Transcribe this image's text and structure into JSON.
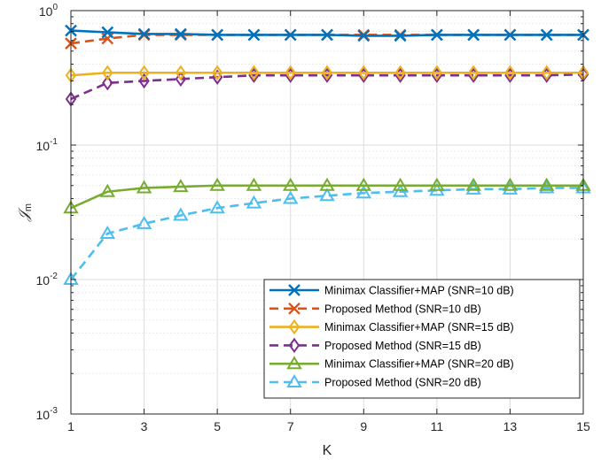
{
  "chart_data": {
    "type": "line",
    "xlabel": "K",
    "ylabel": "𝒥",
    "ylabel_sub": "m",
    "yscale": "log",
    "xlim": [
      1,
      15
    ],
    "ylim": [
      0.001,
      1
    ],
    "xticks": [
      1,
      3,
      5,
      7,
      9,
      11,
      13,
      15
    ],
    "xtick_labels": [
      "1",
      "3",
      "5",
      "7",
      "9",
      "11",
      "13",
      "15"
    ],
    "yticks": [
      {
        "value": 0.001,
        "base": "10",
        "exp": "-3"
      },
      {
        "value": 0.01,
        "base": "10",
        "exp": "-2"
      },
      {
        "value": 0.1,
        "base": "10",
        "exp": "-1"
      },
      {
        "value": 1,
        "base": "10",
        "exp": "0"
      }
    ],
    "grid": true,
    "legend_position": "bottom-right",
    "x": [
      1,
      2,
      3,
      4,
      5,
      6,
      7,
      8,
      9,
      10,
      11,
      12,
      13,
      14,
      15
    ],
    "series": [
      {
        "name": "Minimax Classifier+MAP (SNR=10 dB)",
        "color": "#0072BD",
        "dash": "solid",
        "marker": "x",
        "values": [
          0.71,
          0.69,
          0.67,
          0.67,
          0.66,
          0.66,
          0.66,
          0.66,
          0.65,
          0.65,
          0.66,
          0.66,
          0.66,
          0.66,
          0.66
        ]
      },
      {
        "name": "Proposed Method (SNR=10 dB)",
        "color": "#D95319",
        "dash": "dashed",
        "marker": "x",
        "values": [
          0.57,
          0.62,
          0.66,
          0.66,
          0.66,
          0.66,
          0.66,
          0.66,
          0.66,
          0.66,
          0.66,
          0.66,
          0.66,
          0.66,
          0.66
        ]
      },
      {
        "name": "Minimax Classifier+MAP (SNR=15 dB)",
        "color": "#EDB120",
        "dash": "solid",
        "marker": "diamond",
        "values": [
          0.33,
          0.345,
          0.345,
          0.345,
          0.345,
          0.345,
          0.345,
          0.345,
          0.345,
          0.345,
          0.345,
          0.345,
          0.345,
          0.345,
          0.345
        ]
      },
      {
        "name": "Proposed Method (SNR=15 dB)",
        "color": "#7E2F8E",
        "dash": "dashed",
        "marker": "diamond",
        "values": [
          0.22,
          0.29,
          0.3,
          0.31,
          0.32,
          0.33,
          0.33,
          0.33,
          0.33,
          0.33,
          0.33,
          0.33,
          0.33,
          0.33,
          0.335
        ]
      },
      {
        "name": "Minimax Classifier+MAP (SNR=20 dB)",
        "color": "#77AC30",
        "dash": "solid",
        "marker": "triangle",
        "values": [
          0.034,
          0.045,
          0.048,
          0.049,
          0.05,
          0.05,
          0.05,
          0.05,
          0.05,
          0.05,
          0.05,
          0.05,
          0.05,
          0.05,
          0.05
        ]
      },
      {
        "name": "Proposed Method (SNR=20 dB)",
        "color": "#4DBEEE",
        "dash": "dashed",
        "marker": "triangle",
        "values": [
          0.01,
          0.022,
          0.026,
          0.03,
          0.034,
          0.037,
          0.04,
          0.042,
          0.044,
          0.045,
          0.046,
          0.047,
          0.047,
          0.048,
          0.048
        ]
      }
    ]
  }
}
